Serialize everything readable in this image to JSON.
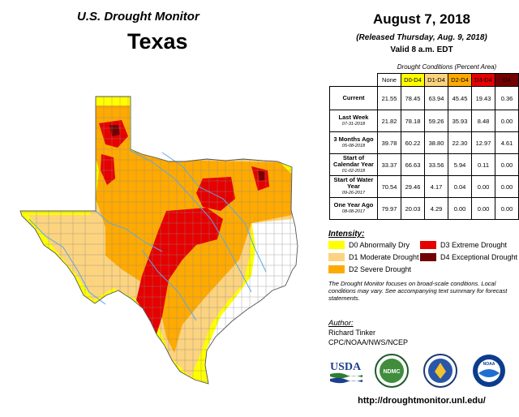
{
  "header": {
    "monitor_title": "U.S. Drought Monitor",
    "state": "Texas",
    "date": "August 7, 2018",
    "released": "(Released Thursday, Aug. 9, 2018)",
    "valid": "Valid 8 a.m. EDT"
  },
  "table": {
    "caption": "Drought Conditions (Percent Area)",
    "columns": [
      "None",
      "D0-D4",
      "D1-D4",
      "D2-D4",
      "D3-D4",
      "D4"
    ],
    "column_colors": [
      "#ffffff",
      "#ffff00",
      "#fcd37f",
      "#ffaa00",
      "#e60000",
      "#730000"
    ],
    "rows": [
      {
        "label": "Current",
        "sub": "",
        "values": [
          "21.55",
          "78.45",
          "63.94",
          "45.45",
          "19.43",
          "0.36"
        ]
      },
      {
        "label": "Last Week",
        "sub": "07-31-2018",
        "values": [
          "21.82",
          "78.18",
          "59.26",
          "35.93",
          "8.48",
          "0.00"
        ]
      },
      {
        "label": "3 Months Ago",
        "sub": "05-08-2018",
        "values": [
          "39.78",
          "60.22",
          "38.80",
          "22.30",
          "12.97",
          "4.61"
        ]
      },
      {
        "label": "Start of Calendar Year",
        "sub": "01-02-2018",
        "values": [
          "33.37",
          "66.63",
          "33.56",
          "5.94",
          "0.11",
          "0.00"
        ]
      },
      {
        "label": "Start of Water Year",
        "sub": "09-26-2017",
        "values": [
          "70.54",
          "29.46",
          "4.17",
          "0.04",
          "0.00",
          "0.00"
        ]
      },
      {
        "label": "One Year Ago",
        "sub": "08-08-2017",
        "values": [
          "79.97",
          "20.03",
          "4.29",
          "0.00",
          "0.00",
          "0.00"
        ]
      }
    ]
  },
  "legend": {
    "title": "Intensity:",
    "items": [
      {
        "label": "D0 Abnormally Dry",
        "color": "#ffff00"
      },
      {
        "label": "D1 Moderate Drought",
        "color": "#fcd37f"
      },
      {
        "label": "D2 Severe Drought",
        "color": "#ffaa00"
      },
      {
        "label": "D3 Extreme Drought",
        "color": "#e60000"
      },
      {
        "label": "D4 Exceptional Drought",
        "color": "#730000"
      }
    ]
  },
  "note": "The Drought Monitor focuses on broad-scale conditions. Local conditions may vary. See accompanying text summary for forecast statements.",
  "author": {
    "label": "Author:",
    "name": "Richard Tinker",
    "org": "CPC/NOAA/NWS/NCEP"
  },
  "logos": {
    "usda": "USDA",
    "ndmc": "NDMC",
    "noaa": "NOAA"
  },
  "url": "http://droughtmonitor.unl.edu/",
  "map": {
    "region": "Texas",
    "colors": {
      "none": "#ffffff",
      "d0": "#ffff00",
      "d1": "#fcd37f",
      "d2": "#ffaa00",
      "d3": "#e60000",
      "d4": "#730000",
      "rivers": "#5aa9e6",
      "borders": "#888888"
    }
  }
}
